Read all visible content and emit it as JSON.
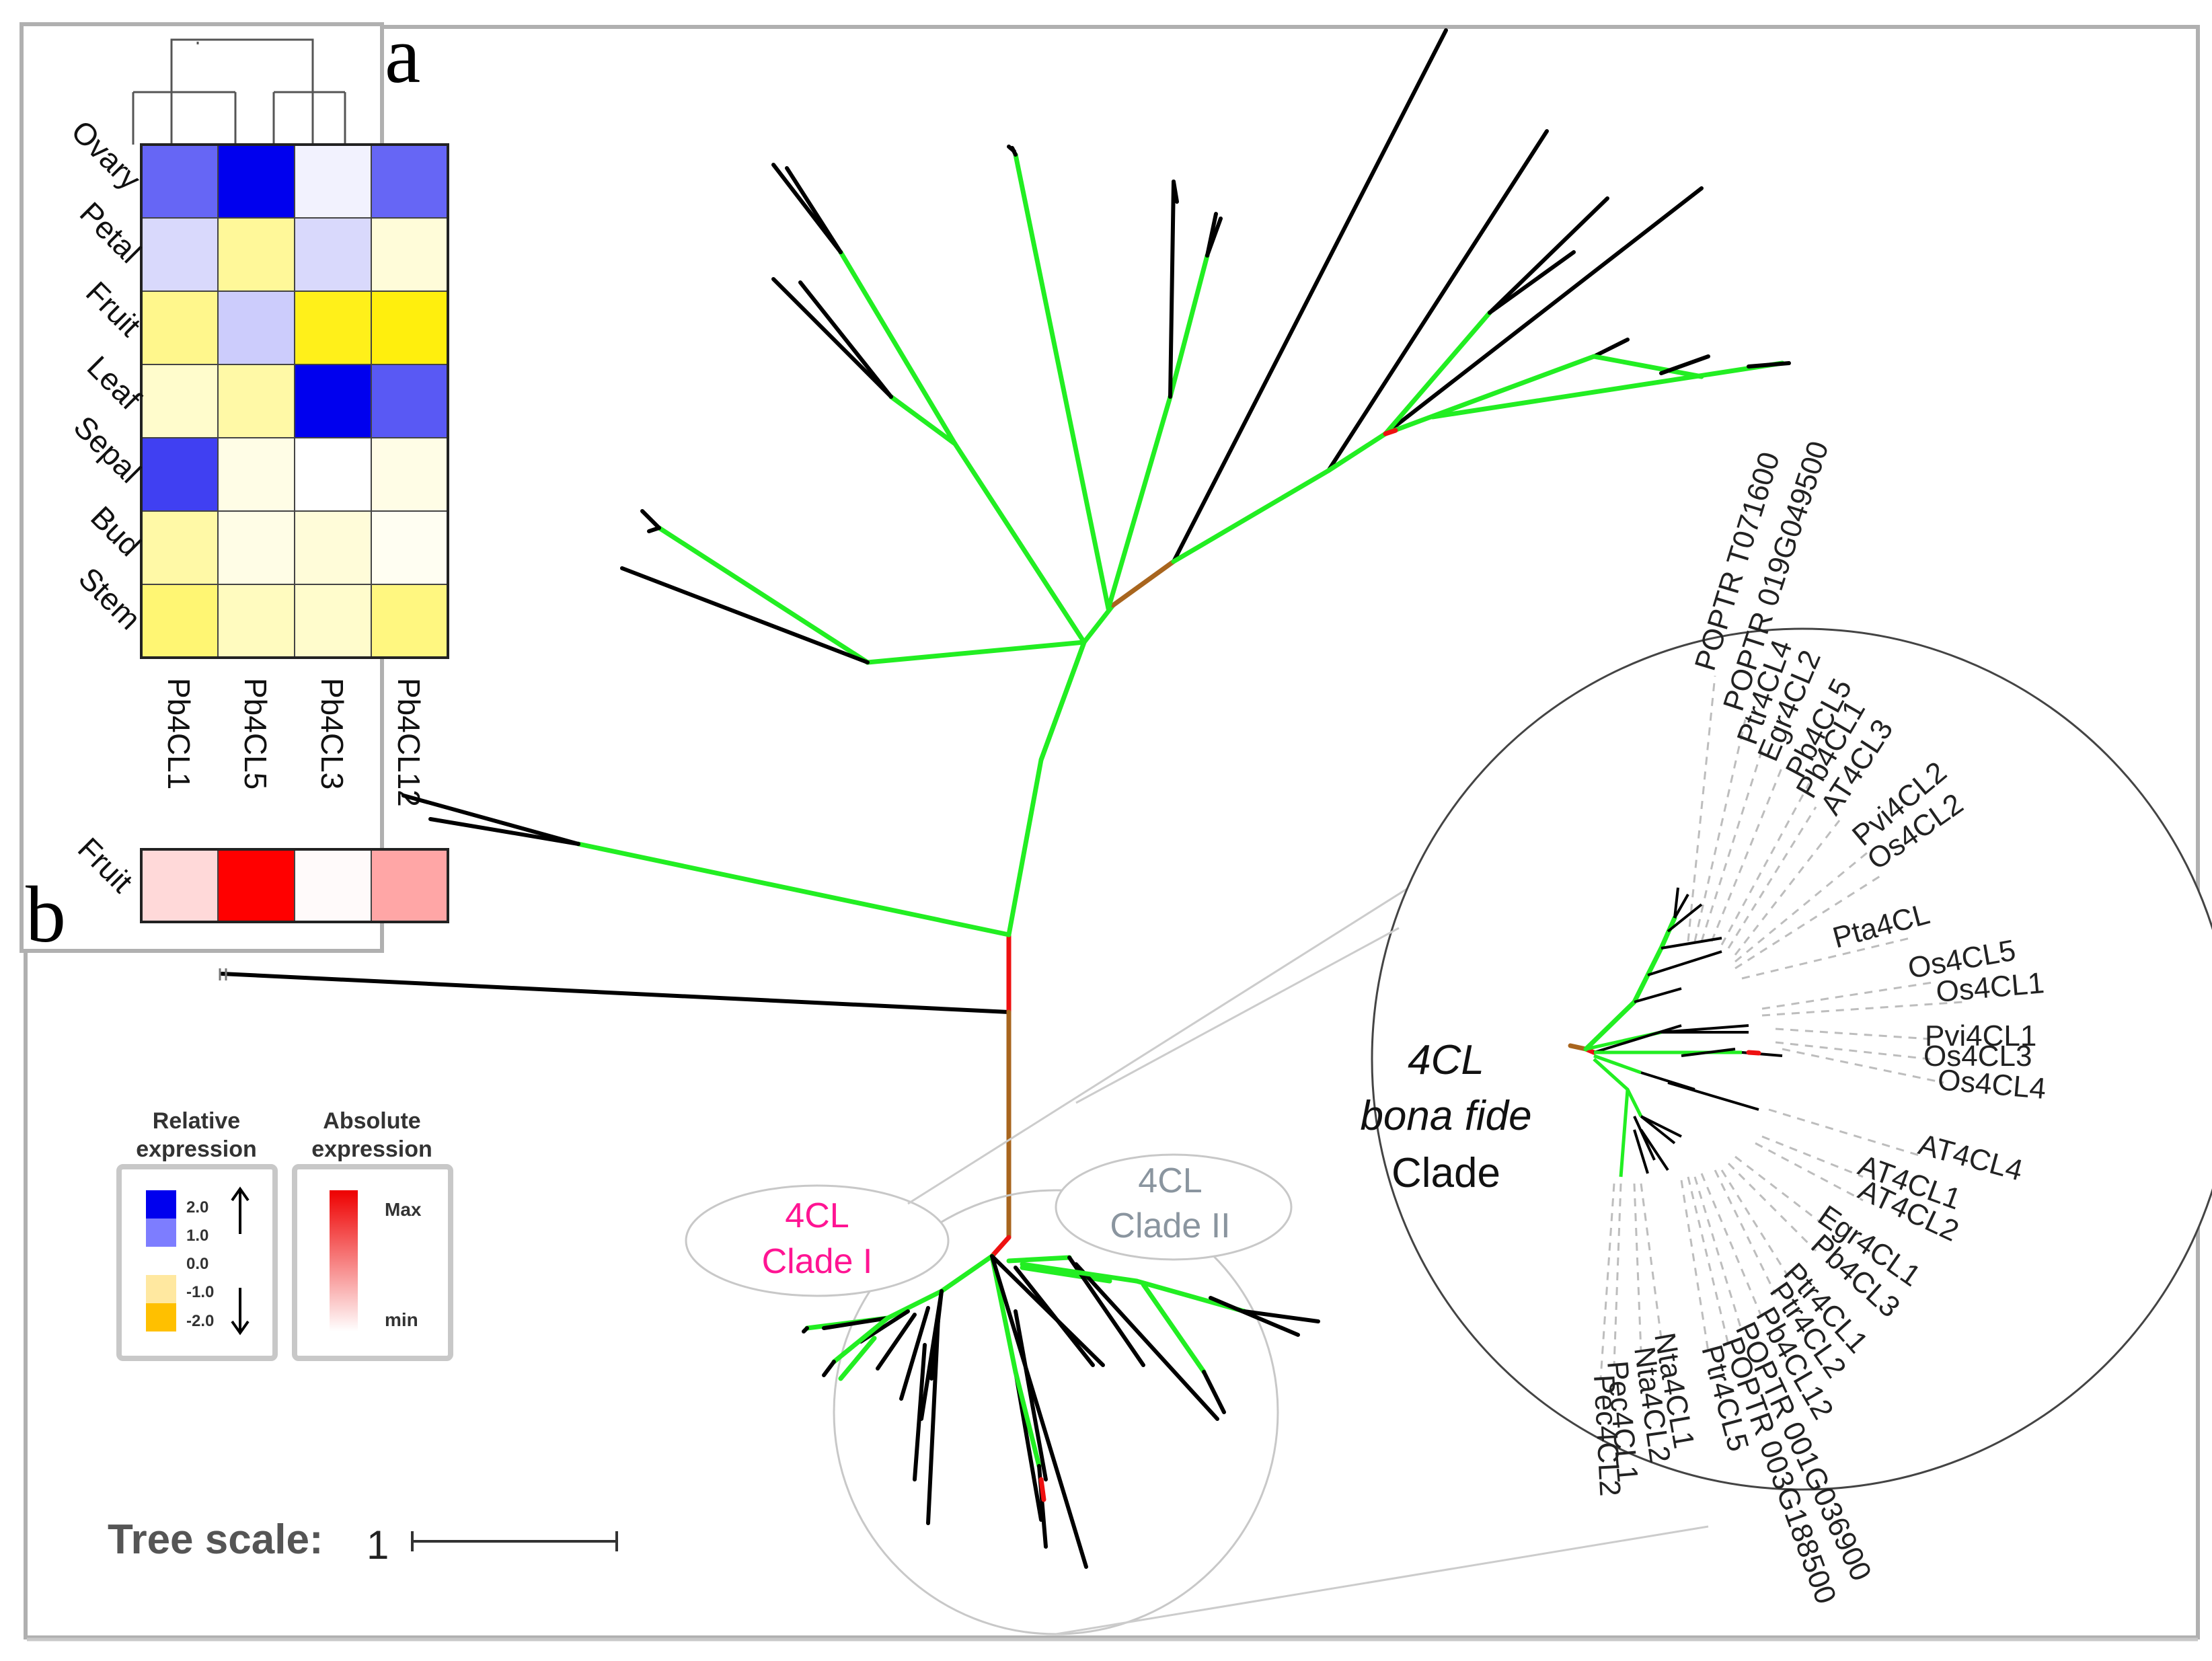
{
  "panels": {
    "a": "a",
    "b": "b"
  },
  "heatmap": {
    "rows": [
      "Ovary",
      "Petal",
      "Fruit",
      "Leaf",
      "Sepal",
      "Bud",
      "Stem"
    ],
    "columns": [
      "Pb4CL1",
      "Pb4CL5",
      "Pb4CL3",
      "Pb4CL12"
    ],
    "relative_expression": [
      [
        1.2,
        2.0,
        0.1,
        1.2
      ],
      [
        0.3,
        -0.8,
        0.3,
        -0.3
      ],
      [
        -0.9,
        0.4,
        -1.8,
        -1.9
      ],
      [
        -0.4,
        -0.7,
        2.0,
        1.3
      ],
      [
        1.5,
        -0.2,
        0.0,
        -0.2
      ],
      [
        -0.7,
        -0.2,
        -0.3,
        -0.1
      ],
      [
        -1.1,
        -0.5,
        -0.4,
        -1.0
      ]
    ],
    "absolute_row_label": "Fruit",
    "absolute_expression": [
      0.15,
      1.0,
      0.02,
      0.35
    ]
  },
  "tree": {
    "clade_i_label_line1": "4CL",
    "clade_i_label_line2": "Clade I",
    "clade_ii_label_line1": "4CL",
    "clade_ii_label_line2": "Clade II",
    "inset_title_line1": "4CL",
    "inset_title_line2": "bona fide",
    "inset_title_line3": "Clade",
    "inset_tips": [
      "POPTR T071600",
      "POPTR 019G049500",
      "Ptr4CL4",
      "Egr4CL2",
      "Pb4CL5",
      "Pb4CL1",
      "AT4CL3",
      "Pvi4CL2",
      "Os4CL2",
      "Pta4CL",
      "Os4CL5",
      "Os4CL1",
      "Pvi4CL1",
      "Os4CL3",
      "Os4CL4",
      "AT4CL4",
      "AT4CL1",
      "AT4CL2",
      "Egr4CL1",
      "Pb4CL3",
      "Ptr4CL1",
      "Ptr4CL2",
      "Pb4CL12",
      "POPTR 001G036900",
      "POPTR 003G188500",
      "Ptr4CL5",
      "Nta4CL1",
      "Nta4CL2",
      "Pec4CL1",
      "Pec4CL2"
    ]
  },
  "legend": {
    "relative_title_line1": "Relative",
    "relative_title_line2": "expression",
    "relative_ticks": [
      "2.0",
      "1.0",
      "0.0",
      "-1.0",
      "-2.0"
    ],
    "absolute_title_line1": "Absolute",
    "absolute_title_line2": "expression",
    "absolute_max": "Max",
    "absolute_min": "min"
  },
  "scale": {
    "label": "Tree scale:",
    "value": "1"
  },
  "colors": {
    "high": "#0000ee",
    "mid": "#ffffff",
    "low": "#ffee00",
    "absolute_max": "#ff0000",
    "branch_support": "#22ee22",
    "branch_root": "#ee1111",
    "branch_stem": "#a8651e",
    "clade_i_text": "#ff1493",
    "clade_ii_text": "#8a959f"
  }
}
